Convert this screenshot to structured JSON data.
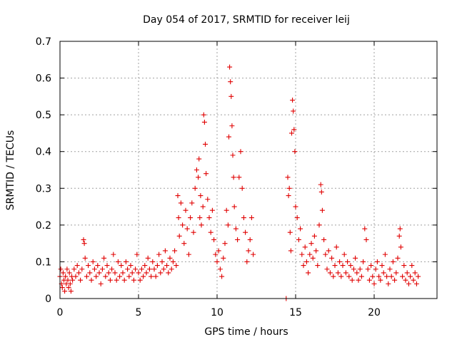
{
  "chart_data": {
    "type": "scatter",
    "title": "Day 054 of 2017, SRMTID for receiver leij",
    "xlabel": "GPS time / hours",
    "ylabel": "SRMTID / TECUs",
    "xlim": [
      0,
      24
    ],
    "ylim": [
      0,
      0.7
    ],
    "x_ticks": [
      0,
      5,
      10,
      15,
      20
    ],
    "x_tick_labels": [
      "0",
      "5",
      "10",
      "15",
      "20"
    ],
    "y_ticks": [
      0,
      0.1,
      0.2,
      0.3,
      0.4,
      0.5,
      0.6,
      0.7
    ],
    "y_tick_labels": [
      "0",
      "0.1",
      "0.2",
      "0.3",
      "0.4",
      "0.5",
      "0.6",
      "0.7"
    ],
    "grid": true,
    "marker": "+",
    "color": "#e00000",
    "series": [
      {
        "name": "SRMTID",
        "points": [
          [
            0.0,
            0.06
          ],
          [
            0.05,
            0.08
          ],
          [
            0.1,
            0.04
          ],
          [
            0.15,
            0.03
          ],
          [
            0.2,
            0.07
          ],
          [
            0.25,
            0.05
          ],
          [
            0.3,
            0.02
          ],
          [
            0.35,
            0.06
          ],
          [
            0.4,
            0.04
          ],
          [
            0.45,
            0.08
          ],
          [
            0.5,
            0.05
          ],
          [
            0.55,
            0.03
          ],
          [
            0.6,
            0.07
          ],
          [
            0.65,
            0.04
          ],
          [
            0.7,
            0.02
          ],
          [
            0.75,
            0.06
          ],
          [
            0.8,
            0.05
          ],
          [
            0.9,
            0.08
          ],
          [
            1.0,
            0.06
          ],
          [
            1.1,
            0.09
          ],
          [
            1.2,
            0.07
          ],
          [
            1.3,
            0.05
          ],
          [
            1.4,
            0.08
          ],
          [
            1.5,
            0.16
          ],
          [
            1.55,
            0.15
          ],
          [
            1.6,
            0.11
          ],
          [
            1.7,
            0.06
          ],
          [
            1.8,
            0.09
          ],
          [
            1.9,
            0.07
          ],
          [
            2.0,
            0.05
          ],
          [
            2.1,
            0.1
          ],
          [
            2.2,
            0.08
          ],
          [
            2.3,
            0.06
          ],
          [
            2.4,
            0.09
          ],
          [
            2.5,
            0.07
          ],
          [
            2.6,
            0.04
          ],
          [
            2.7,
            0.08
          ],
          [
            2.8,
            0.11
          ],
          [
            2.9,
            0.06
          ],
          [
            3.0,
            0.09
          ],
          [
            3.1,
            0.07
          ],
          [
            3.2,
            0.05
          ],
          [
            3.3,
            0.08
          ],
          [
            3.4,
            0.12
          ],
          [
            3.5,
            0.07
          ],
          [
            3.6,
            0.05
          ],
          [
            3.7,
            0.1
          ],
          [
            3.8,
            0.06
          ],
          [
            3.9,
            0.09
          ],
          [
            4.0,
            0.07
          ],
          [
            4.1,
            0.05
          ],
          [
            4.2,
            0.1
          ],
          [
            4.3,
            0.08
          ],
          [
            4.4,
            0.06
          ],
          [
            4.5,
            0.09
          ],
          [
            4.6,
            0.07
          ],
          [
            4.7,
            0.05
          ],
          [
            4.8,
            0.08
          ],
          [
            4.9,
            0.12
          ],
          [
            5.0,
            0.07
          ],
          [
            5.1,
            0.05
          ],
          [
            5.2,
            0.08
          ],
          [
            5.3,
            0.06
          ],
          [
            5.4,
            0.09
          ],
          [
            5.5,
            0.07
          ],
          [
            5.6,
            0.11
          ],
          [
            5.7,
            0.08
          ],
          [
            5.8,
            0.06
          ],
          [
            5.9,
            0.1
          ],
          [
            6.0,
            0.08
          ],
          [
            6.1,
            0.06
          ],
          [
            6.2,
            0.09
          ],
          [
            6.3,
            0.12
          ],
          [
            6.4,
            0.07
          ],
          [
            6.5,
            0.1
          ],
          [
            6.6,
            0.08
          ],
          [
            6.7,
            0.13
          ],
          [
            6.8,
            0.09
          ],
          [
            6.9,
            0.07
          ],
          [
            7.0,
            0.11
          ],
          [
            7.1,
            0.08
          ],
          [
            7.2,
            0.1
          ],
          [
            7.3,
            0.13
          ],
          [
            7.4,
            0.09
          ],
          [
            7.5,
            0.28
          ],
          [
            7.55,
            0.22
          ],
          [
            7.6,
            0.17
          ],
          [
            7.7,
            0.26
          ],
          [
            7.8,
            0.2
          ],
          [
            7.9,
            0.15
          ],
          [
            8.0,
            0.24
          ],
          [
            8.1,
            0.19
          ],
          [
            8.2,
            0.12
          ],
          [
            8.3,
            0.22
          ],
          [
            8.4,
            0.26
          ],
          [
            8.5,
            0.18
          ],
          [
            8.6,
            0.3
          ],
          [
            8.7,
            0.35
          ],
          [
            8.8,
            0.33
          ],
          [
            8.85,
            0.38
          ],
          [
            8.9,
            0.22
          ],
          [
            8.95,
            0.28
          ],
          [
            9.0,
            0.2
          ],
          [
            9.1,
            0.25
          ],
          [
            9.15,
            0.5
          ],
          [
            9.2,
            0.48
          ],
          [
            9.25,
            0.42
          ],
          [
            9.3,
            0.34
          ],
          [
            9.4,
            0.27
          ],
          [
            9.5,
            0.22
          ],
          [
            9.6,
            0.18
          ],
          [
            9.7,
            0.24
          ],
          [
            9.8,
            0.16
          ],
          [
            9.9,
            0.12
          ],
          [
            10.0,
            0.1
          ],
          [
            10.1,
            0.13
          ],
          [
            10.2,
            0.08
          ],
          [
            10.3,
            0.06
          ],
          [
            10.4,
            0.11
          ],
          [
            10.5,
            0.15
          ],
          [
            10.6,
            0.24
          ],
          [
            10.7,
            0.2
          ],
          [
            10.75,
            0.44
          ],
          [
            10.8,
            0.63
          ],
          [
            10.85,
            0.59
          ],
          [
            10.9,
            0.55
          ],
          [
            10.95,
            0.47
          ],
          [
            11.0,
            0.39
          ],
          [
            11.05,
            0.33
          ],
          [
            11.1,
            0.25
          ],
          [
            11.2,
            0.19
          ],
          [
            11.3,
            0.16
          ],
          [
            11.4,
            0.33
          ],
          [
            11.5,
            0.4
          ],
          [
            11.6,
            0.3
          ],
          [
            11.7,
            0.22
          ],
          [
            11.8,
            0.18
          ],
          [
            11.9,
            0.1
          ],
          [
            12.0,
            0.13
          ],
          [
            12.1,
            0.16
          ],
          [
            12.2,
            0.22
          ],
          [
            12.3,
            0.12
          ],
          [
            14.4,
            0.0
          ],
          [
            14.5,
            0.33
          ],
          [
            14.55,
            0.28
          ],
          [
            14.6,
            0.3
          ],
          [
            14.65,
            0.18
          ],
          [
            14.7,
            0.13
          ],
          [
            14.75,
            0.45
          ],
          [
            14.8,
            0.54
          ],
          [
            14.85,
            0.51
          ],
          [
            14.9,
            0.46
          ],
          [
            14.95,
            0.4
          ],
          [
            15.0,
            0.25
          ],
          [
            15.1,
            0.22
          ],
          [
            15.2,
            0.16
          ],
          [
            15.3,
            0.19
          ],
          [
            15.4,
            0.12
          ],
          [
            15.5,
            0.09
          ],
          [
            15.6,
            0.14
          ],
          [
            15.7,
            0.1
          ],
          [
            15.8,
            0.07
          ],
          [
            15.9,
            0.12
          ],
          [
            16.0,
            0.15
          ],
          [
            16.1,
            0.11
          ],
          [
            16.2,
            0.17
          ],
          [
            16.3,
            0.13
          ],
          [
            16.4,
            0.09
          ],
          [
            16.5,
            0.2
          ],
          [
            16.6,
            0.31
          ],
          [
            16.65,
            0.29
          ],
          [
            16.7,
            0.24
          ],
          [
            16.8,
            0.16
          ],
          [
            16.9,
            0.12
          ],
          [
            17.0,
            0.08
          ],
          [
            17.1,
            0.13
          ],
          [
            17.2,
            0.07
          ],
          [
            17.3,
            0.11
          ],
          [
            17.4,
            0.06
          ],
          [
            17.5,
            0.09
          ],
          [
            17.6,
            0.14
          ],
          [
            17.7,
            0.07
          ],
          [
            17.8,
            0.1
          ],
          [
            17.9,
            0.06
          ],
          [
            18.0,
            0.09
          ],
          [
            18.1,
            0.12
          ],
          [
            18.2,
            0.07
          ],
          [
            18.3,
            0.1
          ],
          [
            18.4,
            0.06
          ],
          [
            18.5,
            0.09
          ],
          [
            18.6,
            0.05
          ],
          [
            18.7,
            0.08
          ],
          [
            18.8,
            0.11
          ],
          [
            18.9,
            0.07
          ],
          [
            19.0,
            0.05
          ],
          [
            19.1,
            0.08
          ],
          [
            19.2,
            0.06
          ],
          [
            19.3,
            0.1
          ],
          [
            19.4,
            0.19
          ],
          [
            19.5,
            0.16
          ],
          [
            19.6,
            0.08
          ],
          [
            19.7,
            0.05
          ],
          [
            19.8,
            0.09
          ],
          [
            19.9,
            0.06
          ],
          [
            20.0,
            0.04
          ],
          [
            20.1,
            0.08
          ],
          [
            20.2,
            0.1
          ],
          [
            20.3,
            0.06
          ],
          [
            20.4,
            0.05
          ],
          [
            20.5,
            0.09
          ],
          [
            20.6,
            0.07
          ],
          [
            20.7,
            0.12
          ],
          [
            20.8,
            0.06
          ],
          [
            20.9,
            0.04
          ],
          [
            21.0,
            0.08
          ],
          [
            21.1,
            0.06
          ],
          [
            21.2,
            0.1
          ],
          [
            21.3,
            0.05
          ],
          [
            21.4,
            0.07
          ],
          [
            21.5,
            0.11
          ],
          [
            21.6,
            0.17
          ],
          [
            21.65,
            0.19
          ],
          [
            21.7,
            0.14
          ],
          [
            21.8,
            0.06
          ],
          [
            21.9,
            0.09
          ],
          [
            22.0,
            0.05
          ],
          [
            22.1,
            0.07
          ],
          [
            22.2,
            0.04
          ],
          [
            22.3,
            0.06
          ],
          [
            22.4,
            0.09
          ],
          [
            22.5,
            0.05
          ],
          [
            22.6,
            0.07
          ],
          [
            22.7,
            0.04
          ],
          [
            22.8,
            0.06
          ]
        ]
      }
    ]
  }
}
